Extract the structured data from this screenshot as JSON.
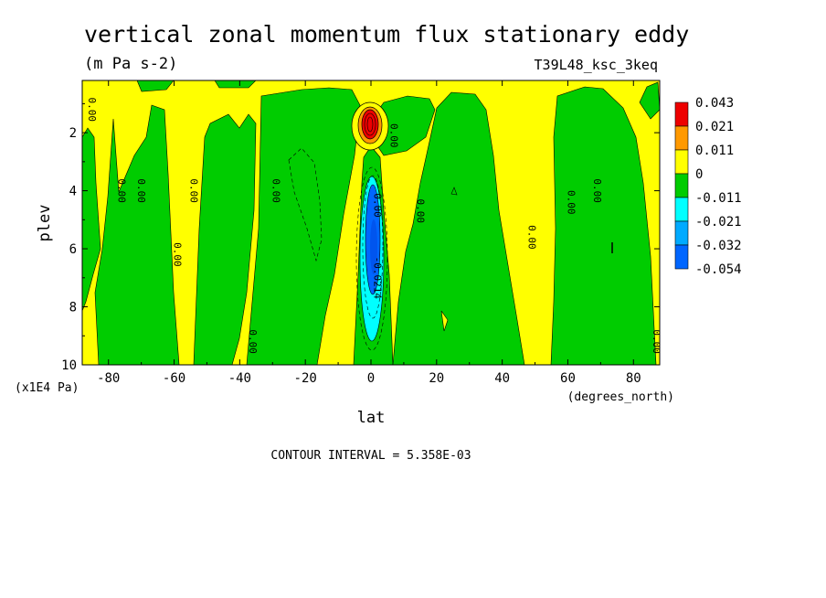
{
  "chart_data": {
    "type": "contour",
    "title": "vertical zonal momentum flux stationary eddy",
    "units": "(m Pa s-2)",
    "run_label": "T39L48_ksc_3keq",
    "xlabel": "lat",
    "x_units": "(degrees_north)",
    "ylabel": "plev",
    "y_units": "(x1E4 Pa)",
    "xlim": [
      -88,
      88
    ],
    "ylim": [
      10,
      0.2
    ],
    "x_ticks": [
      -80,
      -60,
      -40,
      -20,
      0,
      20,
      40,
      60,
      80
    ],
    "x_tick_labels": [
      "-80",
      "-60",
      "-40",
      "-20",
      "0",
      "20",
      "40",
      "60",
      "80"
    ],
    "y_ticks": [
      2,
      4,
      6,
      8,
      10
    ],
    "y_tick_labels": [
      "2",
      "4",
      "6",
      "8",
      "10"
    ],
    "footer": "CONTOUR INTERVAL = 5.358E-03",
    "legend": {
      "levels": [
        "0.043",
        "0.021",
        "0.011",
        "0",
        "-0.011",
        "-0.021",
        "-0.032",
        "-0.054"
      ],
      "colors": [
        "#ee0000",
        "#ff9900",
        "#ffff00",
        "#00cc00",
        "#00ffff",
        "#00aaff",
        "#0066ff"
      ]
    },
    "contour_labels": [
      {
        "text": "0.00",
        "lon": -86,
        "plev": 1.2
      },
      {
        "text": "0.00",
        "lon": -77,
        "plev": 4.0
      },
      {
        "text": "0.00",
        "lon": -71,
        "plev": 4.0
      },
      {
        "text": "0.00",
        "lon": -55,
        "plev": 4.0
      },
      {
        "text": "0.00",
        "lon": -60,
        "plev": 6.2
      },
      {
        "text": "0.00",
        "lon": -37,
        "plev": 9.2
      },
      {
        "text": "0.00",
        "lon": -30,
        "plev": 4.0
      },
      {
        "text": "0.00",
        "lon": 6,
        "plev": 2.1
      },
      {
        "text": "0.00",
        "lon": 1,
        "plev": 4.5
      },
      {
        "text": "0.00",
        "lon": 14,
        "plev": 4.7
      },
      {
        "text": "-0.0214",
        "lon": 1,
        "plev": 7.0
      },
      {
        "text": "0.00",
        "lon": 48,
        "plev": 5.6
      },
      {
        "text": "0.00",
        "lon": 60,
        "plev": 4.4
      },
      {
        "text": "0.00",
        "lon": 68,
        "plev": 4.0
      },
      {
        "text": "0.00",
        "lon": 86,
        "plev": 9.2
      }
    ]
  }
}
